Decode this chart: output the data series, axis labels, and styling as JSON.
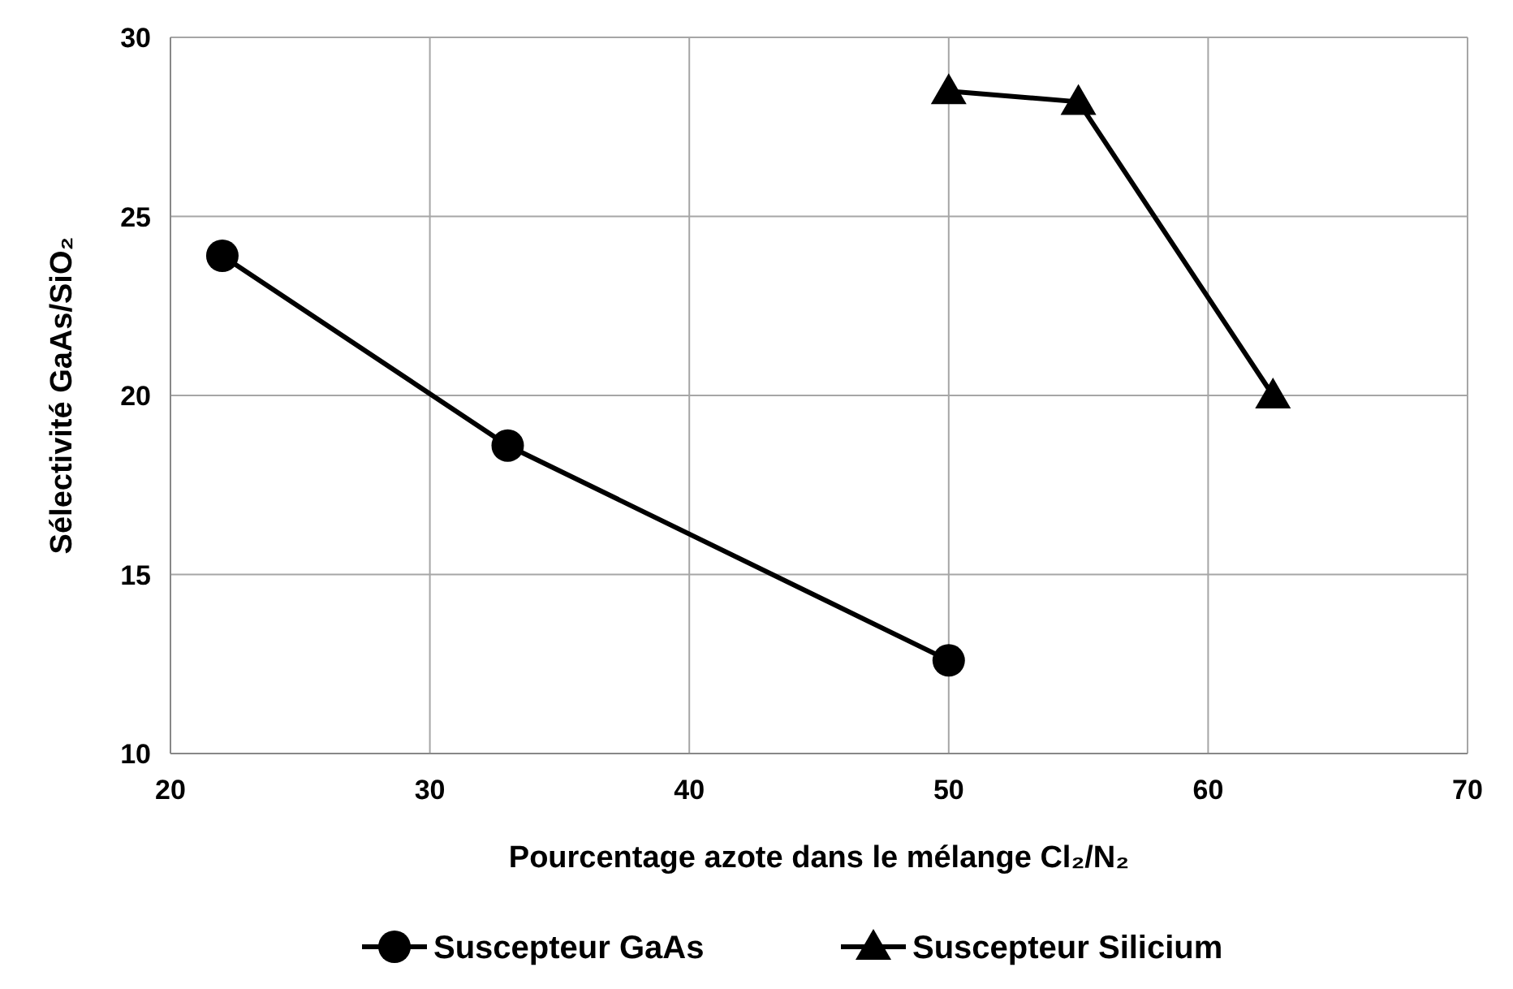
{
  "chart_data": {
    "type": "line",
    "xlabel": "Pourcentage azote  dans le mélange Cl₂/N₂",
    "ylabel": "Sélectivité GaAs/SiO₂",
    "xlim": [
      20,
      70
    ],
    "xticks": [
      20,
      30,
      40,
      50,
      60,
      70
    ],
    "ylim": [
      10,
      30
    ],
    "yticks": [
      10,
      15,
      20,
      25,
      30
    ],
    "grid": true,
    "legend": "bottom",
    "line_style": "solid",
    "series": [
      {
        "name": "Suscepteur GaAs",
        "color": "#000000",
        "marker": "circle",
        "x": [
          22,
          33,
          50
        ],
        "values": [
          23.9,
          18.6,
          12.6
        ]
      },
      {
        "name": "Suscepteur Silicium",
        "color": "#000000",
        "marker": "triangle",
        "x": [
          50,
          55,
          62.5
        ],
        "values": [
          28.5,
          28.2,
          20.0
        ]
      }
    ]
  }
}
